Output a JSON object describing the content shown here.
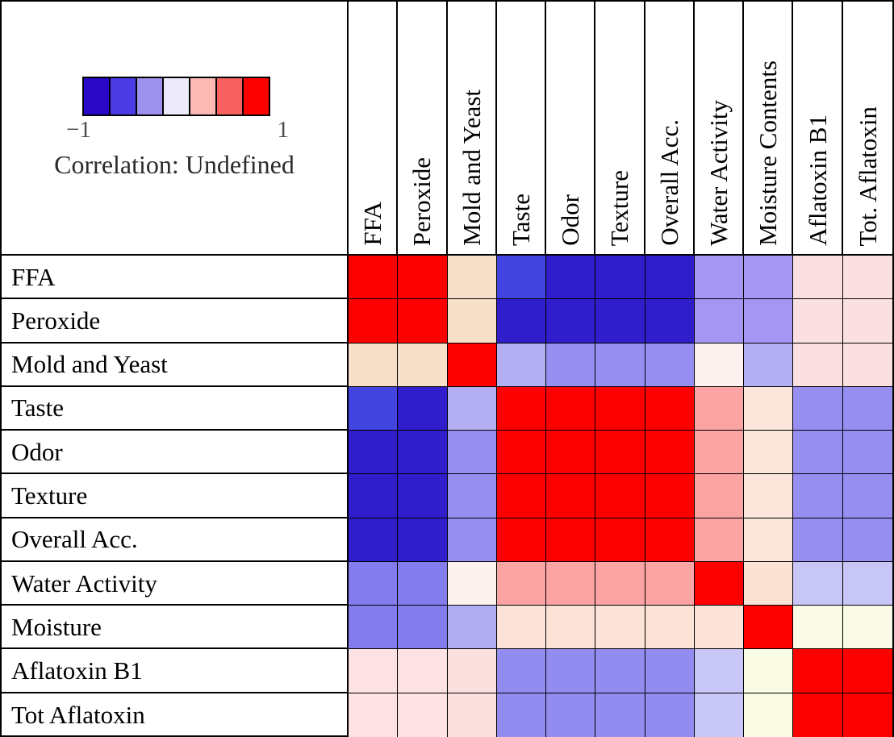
{
  "legend": {
    "min_label": "−1",
    "max_label": "1",
    "caption": "Correlation: Undefined",
    "colorbar_colors": [
      "#2A08C8",
      "#4B3BE4",
      "#9C92EE",
      "#EDEBFA",
      "#FCB8B2",
      "#F96060",
      "#FB0200"
    ]
  },
  "chart_data": {
    "type": "heatmap",
    "title": "Correlation: Undefined",
    "colorbar": {
      "min": -1,
      "max": 1,
      "colors": [
        "#2A08C8",
        "#4B3BE4",
        "#9C92EE",
        "#EDEBFA",
        "#FCB8B2",
        "#F96060",
        "#FB0200"
      ]
    },
    "columns": [
      "FFA",
      "Peroxide",
      "Mold and Yeast",
      "Taste",
      "Odor",
      "Texture",
      "Overall Acc.",
      "Water Activity",
      "Moisture Contents",
      "Aflatoxin B1",
      "Tot. Aflatoxin"
    ],
    "rows": [
      "FFA",
      "Peroxide",
      "Mold and Yeast",
      "Taste",
      "Odor",
      "Texture",
      "Overall Acc.",
      "Water Activity",
      "Moisture",
      "Aflatoxin B1",
      "Tot Aflatoxin"
    ],
    "cell_colors": [
      [
        "#FB0200",
        "#FB0200",
        "#F8DFC9",
        "#4244E0",
        "#2F1EC9",
        "#2F1EC9",
        "#2F1EC9",
        "#A696F4",
        "#A696F4",
        "#FBE0E2",
        "#FBE0E2"
      ],
      [
        "#FB0200",
        "#FB0200",
        "#F8DFC9",
        "#2F1EC9",
        "#2F1EC9",
        "#2F1EC9",
        "#2F1EC9",
        "#A696F4",
        "#A696F4",
        "#FBE0E2",
        "#FBE0E2"
      ],
      [
        "#F8DFC9",
        "#F8DFC9",
        "#FB0200",
        "#B4AEF3",
        "#968EF0",
        "#968EF0",
        "#968EF0",
        "#FEF2F0",
        "#B4AEF3",
        "#FBE0E2",
        "#FBE0E2"
      ],
      [
        "#4244E0",
        "#2F1EC9",
        "#B4AEF3",
        "#FB0200",
        "#FB0200",
        "#FB0200",
        "#FB0200",
        "#FCA4A4",
        "#FCE5DB",
        "#968EF0",
        "#968EF0"
      ],
      [
        "#2F1EC9",
        "#2F1EC9",
        "#968EF0",
        "#FB0200",
        "#FB0200",
        "#FB0200",
        "#FB0200",
        "#FCA4A4",
        "#FCE5DB",
        "#968EF0",
        "#968EF0"
      ],
      [
        "#2F1EC9",
        "#2F1EC9",
        "#968EF0",
        "#FB0200",
        "#FB0200",
        "#FB0200",
        "#FB0200",
        "#FCA4A4",
        "#FCE5DB",
        "#968EF0",
        "#968EF0"
      ],
      [
        "#2F1EC9",
        "#2F1EC9",
        "#968EF0",
        "#FB0200",
        "#FB0200",
        "#FB0200",
        "#FB0200",
        "#FCA4A4",
        "#FCE5DB",
        "#968EF0",
        "#968EF0"
      ],
      [
        "#837CED",
        "#837CED",
        "#FEF2EE",
        "#FCA4A4",
        "#FCA4A4",
        "#FCA4A4",
        "#FCA4A4",
        "#FB0200",
        "#FBE2D4",
        "#C8C5F7",
        "#C8C5F7"
      ],
      [
        "#837CED",
        "#837CED",
        "#B2ACF3",
        "#FBE3D8",
        "#FBE3D8",
        "#FBE3D8",
        "#FBE3D8",
        "#FBE3D8",
        "#FB0200",
        "#FAFBE7",
        "#FAFBE7"
      ],
      [
        "#FCE2E3",
        "#FCE2E3",
        "#FCE0E0",
        "#938CF0",
        "#938CF0",
        "#938CF0",
        "#938CF0",
        "#C9C6F8",
        "#FAFBE5",
        "#FB0200",
        "#FB0200"
      ],
      [
        "#FCE2E3",
        "#FCE2E3",
        "#FCE0E0",
        "#938CF0",
        "#938CF0",
        "#938CF0",
        "#938CF0",
        "#C9C6F8",
        "#FAFBE5",
        "#FB0200",
        "#FB0200"
      ]
    ],
    "estimated_values": [
      [
        0.97,
        0.97,
        0.15,
        -0.75,
        -0.92,
        -0.92,
        -0.92,
        -0.35,
        -0.35,
        0.08,
        0.08
      ],
      [
        0.97,
        0.97,
        0.15,
        -0.92,
        -0.92,
        -0.92,
        -0.92,
        -0.35,
        -0.35,
        0.08,
        0.08
      ],
      [
        0.15,
        0.15,
        0.97,
        -0.27,
        -0.4,
        -0.4,
        -0.4,
        0.03,
        -0.27,
        0.08,
        0.08
      ],
      [
        -0.75,
        -0.92,
        -0.27,
        0.97,
        0.97,
        0.97,
        0.97,
        0.45,
        0.12,
        -0.4,
        -0.4
      ],
      [
        -0.92,
        -0.92,
        -0.4,
        0.97,
        0.97,
        0.97,
        0.97,
        0.45,
        0.12,
        -0.4,
        -0.4
      ],
      [
        -0.92,
        -0.92,
        -0.4,
        0.97,
        0.97,
        0.97,
        0.97,
        0.45,
        0.12,
        -0.4,
        -0.4
      ],
      [
        -0.92,
        -0.92,
        -0.4,
        0.97,
        0.97,
        0.97,
        0.97,
        0.45,
        0.12,
        -0.4,
        -0.4
      ],
      [
        -0.5,
        -0.5,
        0.03,
        0.45,
        0.45,
        0.45,
        0.45,
        0.97,
        0.12,
        -0.18,
        -0.18
      ],
      [
        -0.5,
        -0.5,
        -0.27,
        0.12,
        0.12,
        0.12,
        0.12,
        0.12,
        0.97,
        0.01,
        0.01
      ],
      [
        0.08,
        0.08,
        0.08,
        -0.4,
        -0.4,
        -0.4,
        -0.4,
        -0.18,
        0.01,
        0.97,
        0.97
      ],
      [
        0.08,
        0.08,
        0.08,
        -0.4,
        -0.4,
        -0.4,
        -0.4,
        -0.18,
        0.01,
        0.97,
        0.97
      ]
    ],
    "layout": {
      "grid": true,
      "legend_position": "top-left",
      "column_labels_rotated": true
    }
  }
}
